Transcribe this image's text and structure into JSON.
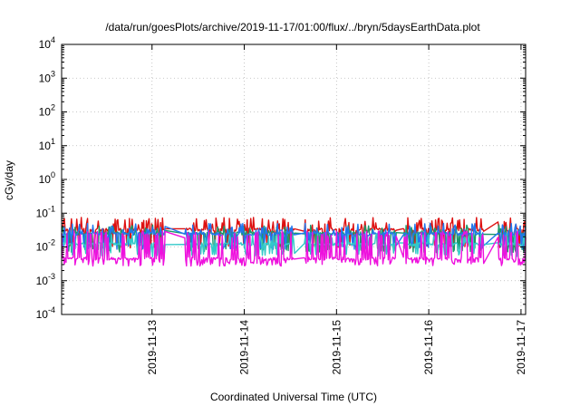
{
  "chart_data": {
    "type": "line",
    "title": "/data/run/goesPlots/archive/2019-11-17/01:00/flux/../bryn/5daysEarthData.plot",
    "xlabel": "Coordinated Universal Time (UTC)",
    "ylabel": "cGy/day",
    "yscale": "log",
    "ylim": [
      0.0001,
      10000
    ],
    "y_ticks": [
      {
        "value": 0.0001,
        "base": "10",
        "exp": "-4"
      },
      {
        "value": 0.001,
        "base": "10",
        "exp": "-3"
      },
      {
        "value": 0.01,
        "base": "10",
        "exp": "-2"
      },
      {
        "value": 0.1,
        "base": "10",
        "exp": "-1"
      },
      {
        "value": 1,
        "base": "10",
        "exp": "0"
      },
      {
        "value": 10,
        "base": "10",
        "exp": "1"
      },
      {
        "value": 100,
        "base": "10",
        "exp": "2"
      },
      {
        "value": 1000,
        "base": "10",
        "exp": "3"
      },
      {
        "value": 10000,
        "base": "10",
        "exp": "4"
      }
    ],
    "x_range_days": [
      12.02,
      17.05
    ],
    "x_ticks": [
      {
        "label": "2019-11-13",
        "day": 13
      },
      {
        "label": "2019-11-14",
        "day": 14
      },
      {
        "label": "2019-11-15",
        "day": 15
      },
      {
        "label": "2019-11-16",
        "day": 16
      },
      {
        "label": "2019-11-17",
        "day": 17
      }
    ],
    "grid": true,
    "data_gaps": [
      [
        13.15,
        13.35
      ],
      [
        14.55,
        14.65
      ],
      [
        15.65,
        15.72
      ],
      [
        16.6,
        16.75
      ]
    ],
    "series": [
      {
        "color": "#dd1111",
        "base": 0.032,
        "low": 0.011,
        "high": 0.075,
        "spike_prob": 0.35
      },
      {
        "color": "#1a9a6a",
        "base": 0.025,
        "low": 0.008,
        "high": 0.045,
        "spike_prob": 0.3
      },
      {
        "color": "#2277ee",
        "base": 0.024,
        "low": 0.01,
        "high": 0.05,
        "spike_prob": 0.35
      },
      {
        "color": "#33c9c9",
        "base": 0.012,
        "low": 0.006,
        "high": 0.025,
        "spike_prob": 0.25
      },
      {
        "color": "#ee11dd",
        "base": 0.0045,
        "low": 0.0032,
        "high": 0.03,
        "spike_prob": 0.45
      }
    ]
  }
}
